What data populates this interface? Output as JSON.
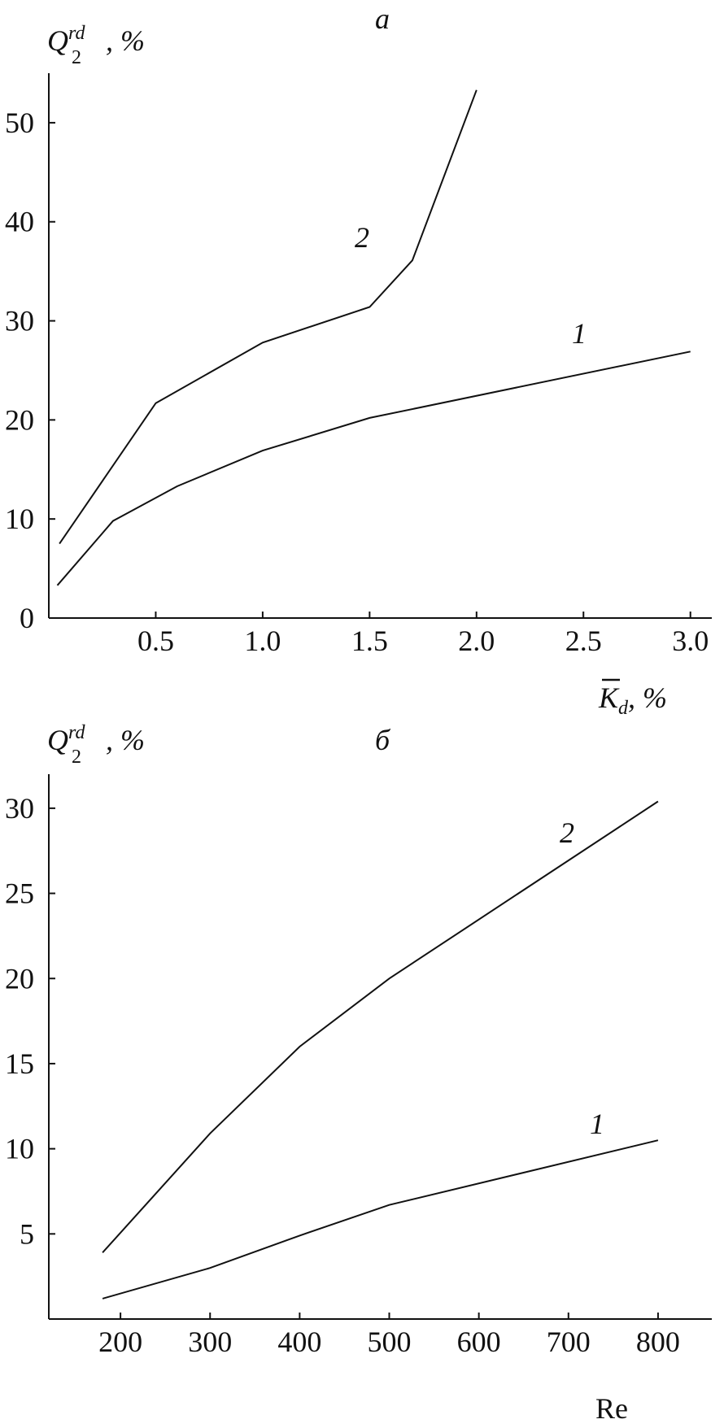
{
  "chart_data": [
    {
      "type": "line",
      "panel_letter": "а",
      "ylabel": {
        "main": "Q",
        "sub": "2",
        "sup": "rd",
        "unit": ", %"
      },
      "xlabel": {
        "main": "K",
        "sub": "d",
        "unit": ", %",
        "overline": true
      },
      "xlim": [
        0,
        3.1
      ],
      "ylim": [
        0,
        55
      ],
      "xticks": [
        0.5,
        1.0,
        1.5,
        2.0,
        2.5,
        3.0
      ],
      "xtick_labels": [
        "0.5",
        "1.0",
        "1.5",
        "2.0",
        "2.5",
        "3.0"
      ],
      "yticks": [
        0,
        10,
        20,
        30,
        40,
        50
      ],
      "ytick_labels": [
        "0",
        "10",
        "20",
        "30",
        "40",
        "50"
      ],
      "grid": false,
      "series": [
        {
          "name": "1",
          "x": [
            0.04,
            0.3,
            0.6,
            1.0,
            1.5,
            3.0
          ],
          "y": [
            3.3,
            9.8,
            13.3,
            16.9,
            20.2,
            26.9
          ]
        },
        {
          "name": "2",
          "x": [
            0.05,
            0.5,
            1.0,
            1.5,
            1.7,
            2.0
          ],
          "y": [
            7.5,
            21.7,
            27.8,
            31.4,
            36.1,
            53.3
          ]
        }
      ]
    },
    {
      "type": "line",
      "panel_letter": "б",
      "ylabel": {
        "main": "Q",
        "sub": "2",
        "sup": "rd",
        "unit": ", %"
      },
      "xlabel": {
        "main": "Re",
        "sub": "",
        "unit": "",
        "overline": false
      },
      "xlim": [
        120,
        860
      ],
      "ylim": [
        0,
        32
      ],
      "xticks": [
        200,
        300,
        400,
        500,
        600,
        700,
        800
      ],
      "xtick_labels": [
        "200",
        "300",
        "400",
        "500",
        "600",
        "700",
        "800"
      ],
      "yticks": [
        5,
        10,
        15,
        20,
        25,
        30
      ],
      "ytick_labels": [
        "5",
        "10",
        "15",
        "20",
        "25",
        "30"
      ],
      "grid": false,
      "series": [
        {
          "name": "1",
          "x": [
            180,
            300,
            400,
            500,
            800
          ],
          "y": [
            1.2,
            3.0,
            4.9,
            6.7,
            10.5
          ]
        },
        {
          "name": "2",
          "x": [
            180,
            300,
            400,
            500,
            800
          ],
          "y": [
            3.9,
            10.9,
            16.0,
            20.0,
            30.4
          ]
        }
      ]
    }
  ]
}
